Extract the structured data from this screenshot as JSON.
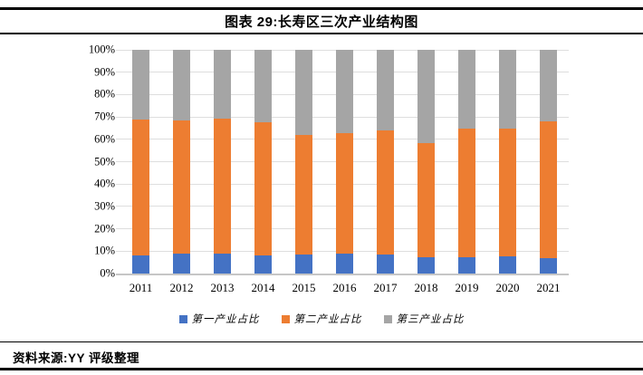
{
  "header": {
    "title": "图表 29:长寿区三次产业结构图"
  },
  "footer": {
    "source": "资料来源:YY 评级整理"
  },
  "chart_data": {
    "type": "bar",
    "subtype": "stacked-100-percent",
    "title": "图表 29:长寿区三次产业结构图",
    "categories": [
      "2011",
      "2012",
      "2013",
      "2014",
      "2015",
      "2016",
      "2017",
      "2018",
      "2019",
      "2020",
      "2021"
    ],
    "series": [
      {
        "name": "第一产业占比",
        "color": "#4472C4",
        "values": [
          8.3,
          8.8,
          8.8,
          8.2,
          8.6,
          9.1,
          8.6,
          7.1,
          7.1,
          7.6,
          6.9
        ]
      },
      {
        "name": "第二产业占比",
        "color": "#ED7D31",
        "values": [
          60.7,
          59.7,
          60.4,
          59.5,
          53.5,
          53.8,
          55.3,
          51.4,
          57.5,
          57.1,
          61.2
        ]
      },
      {
        "name": "第三产业占比",
        "color": "#A5A5A5",
        "values": [
          31.0,
          31.5,
          30.8,
          32.3,
          37.9,
          37.1,
          36.1,
          41.5,
          35.4,
          35.3,
          31.9
        ]
      }
    ],
    "yticks": [
      "100%",
      "90%",
      "80%",
      "70%",
      "60%",
      "50%",
      "40%",
      "30%",
      "20%",
      "10%",
      "0%"
    ],
    "xlabel": "",
    "ylabel": "",
    "ylim": [
      0,
      100
    ],
    "grid": true,
    "gridline_color": "#dedede",
    "axis_line_color": "#c6c6c6",
    "legend_position": "bottom"
  }
}
